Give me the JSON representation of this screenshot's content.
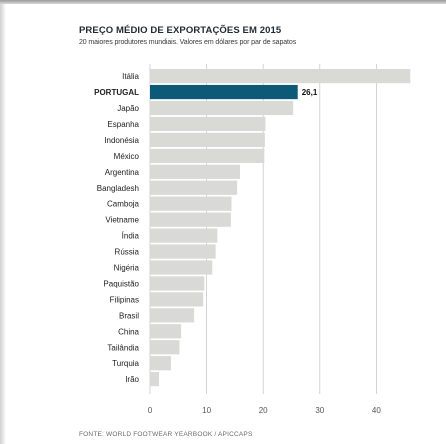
{
  "chart_data": {
    "type": "bar",
    "orientation": "horizontal",
    "title": "PREÇO MÉDIO DE EXPORTAÇÕES EM 2015",
    "subtitle": "20 maiores produtores mundiais. Valores em dólares por par de sapatos",
    "source": "FONTE: WORLD FOOTWEAR YEARBOOK / APICCAPS",
    "categories": [
      "Itália",
      "PORTUGAL",
      "Japão",
      "Espanha",
      "Indonésia",
      "México",
      "Argentina",
      "Bangladesh",
      "Camboja",
      "Vietname",
      "Índia",
      "Rússia",
      "Nigéria",
      "Paquistão",
      "Filipinas",
      "Brasil",
      "China",
      "Tailândia",
      "Turquia",
      "Irão"
    ],
    "values": [
      46,
      26.1,
      25.3,
      20.4,
      20.3,
      20.2,
      15.9,
      15.4,
      14.4,
      14.3,
      11.9,
      11.6,
      11,
      9.6,
      9.4,
      7.8,
      5.5,
      5.2,
      3.7,
      1.6
    ],
    "highlight": "PORTUGAL",
    "data_labels": [
      {
        "category": "PORTUGAL",
        "text": "26,1"
      }
    ],
    "xlim": [
      0,
      47
    ],
    "xticks": [
      "0",
      "10",
      "20",
      "30",
      "40"
    ],
    "grid": true,
    "colors": {
      "bar": "#d9d9d6",
      "highlight": "#0d5a78",
      "grid": "#c9c9c9"
    }
  }
}
